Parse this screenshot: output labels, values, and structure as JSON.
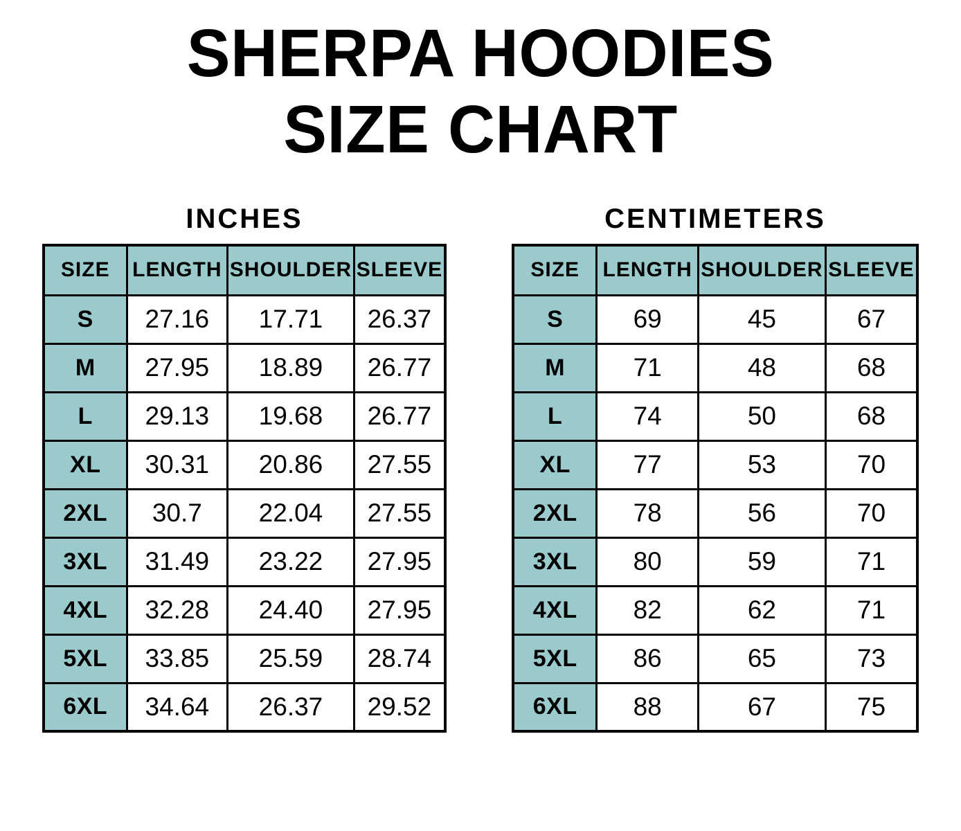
{
  "title": {
    "line1": "SHERPA HOODIES",
    "line2": "SIZE CHART"
  },
  "colors": {
    "header_bg": "#9bcacd",
    "border": "#000000",
    "page_bg": "#ffffff",
    "text": "#000000"
  },
  "chart_data": [
    {
      "type": "table",
      "title": "INCHES",
      "columns": [
        "SIZE",
        "LENGTH",
        "SHOULDER",
        "SLEEVE"
      ],
      "rows": [
        [
          "S",
          "27.16",
          "17.71",
          "26.37"
        ],
        [
          "M",
          "27.95",
          "18.89",
          "26.77"
        ],
        [
          "L",
          "29.13",
          "19.68",
          "26.77"
        ],
        [
          "XL",
          "30.31",
          "20.86",
          "27.55"
        ],
        [
          "2XL",
          "30.7",
          "22.04",
          "27.55"
        ],
        [
          "3XL",
          "31.49",
          "23.22",
          "27.95"
        ],
        [
          "4XL",
          "32.28",
          "24.40",
          "27.95"
        ],
        [
          "5XL",
          "33.85",
          "25.59",
          "28.74"
        ],
        [
          "6XL",
          "34.64",
          "26.37",
          "29.52"
        ]
      ]
    },
    {
      "type": "table",
      "title": "CENTIMETERS",
      "columns": [
        "SIZE",
        "LENGTH",
        "SHOULDER",
        "SLEEVE"
      ],
      "rows": [
        [
          "S",
          "69",
          "45",
          "67"
        ],
        [
          "M",
          "71",
          "48",
          "68"
        ],
        [
          "L",
          "74",
          "50",
          "68"
        ],
        [
          "XL",
          "77",
          "53",
          "70"
        ],
        [
          "2XL",
          "78",
          "56",
          "70"
        ],
        [
          "3XL",
          "80",
          "59",
          "71"
        ],
        [
          "4XL",
          "82",
          "62",
          "71"
        ],
        [
          "5XL",
          "86",
          "65",
          "73"
        ],
        [
          "6XL",
          "88",
          "67",
          "75"
        ]
      ]
    }
  ]
}
